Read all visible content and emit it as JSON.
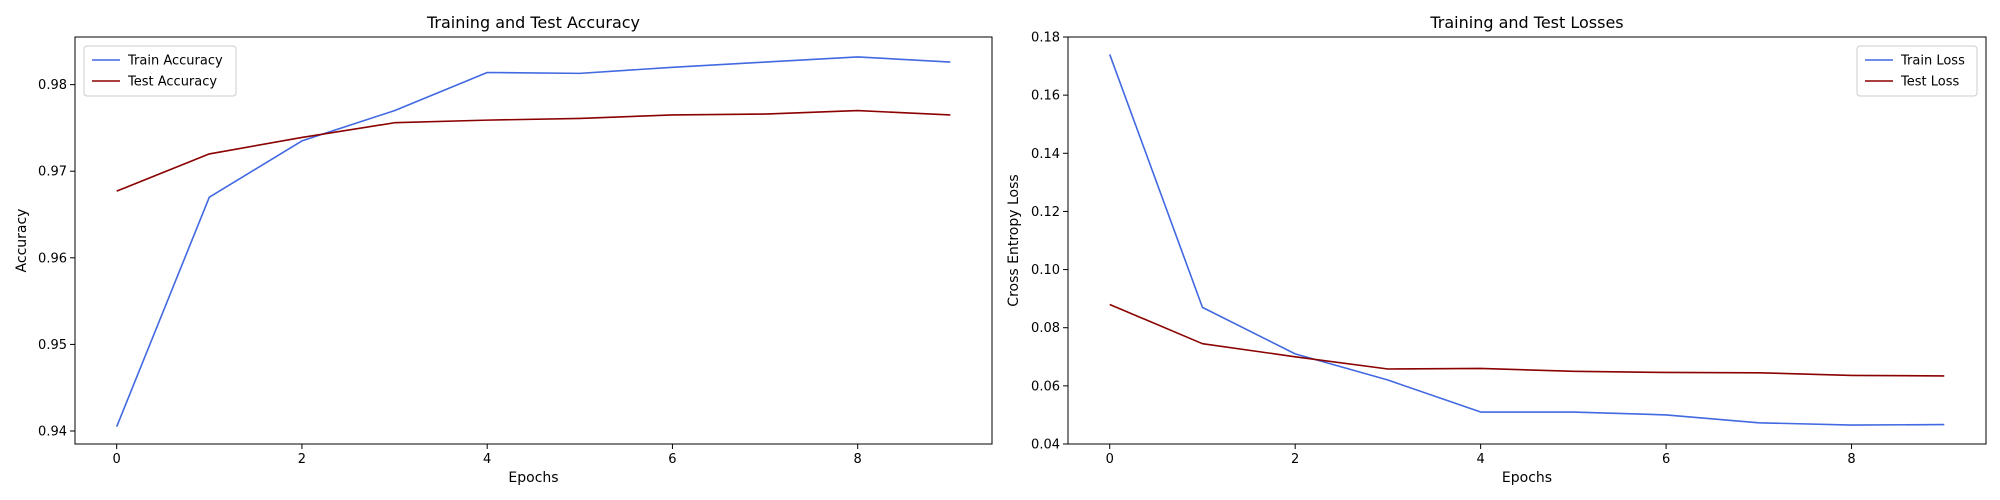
{
  "chart_data": [
    {
      "type": "line",
      "title": "Training and Test Accuracy",
      "xlabel": "Epochs",
      "ylabel": "Accuracy",
      "x": [
        0,
        1,
        2,
        3,
        4,
        5,
        6,
        7,
        8,
        9
      ],
      "xlim": [
        -0.45,
        9.45
      ],
      "ylim": [
        0.9385,
        0.9855
      ],
      "xticks": [
        0,
        2,
        4,
        6,
        8
      ],
      "yticks": [
        0.94,
        0.95,
        0.96,
        0.97,
        0.98
      ],
      "ytick_labels": [
        "0.94",
        "0.95",
        "0.96",
        "0.97",
        "0.98"
      ],
      "legend_position": "upper-left",
      "grid": false,
      "series": [
        {
          "name": "Train Accuracy",
          "color": "#4169e1",
          "values": [
            0.9405,
            0.967,
            0.9735,
            0.977,
            0.9814,
            0.9813,
            0.982,
            0.9826,
            0.9832,
            0.9826
          ]
        },
        {
          "name": "Test Accuracy",
          "color": "#8b0000",
          "values": [
            0.9677,
            0.972,
            0.9739,
            0.9756,
            0.9759,
            0.9761,
            0.9765,
            0.9766,
            0.977,
            0.9765
          ]
        }
      ]
    },
    {
      "type": "line",
      "title": "Training and Test Losses",
      "xlabel": "Epochs",
      "ylabel": "Cross Entropy Loss",
      "x": [
        0,
        1,
        2,
        3,
        4,
        5,
        6,
        7,
        8,
        9
      ],
      "xlim": [
        -0.45,
        9.45
      ],
      "ylim": [
        0.04,
        0.18
      ],
      "xticks": [
        0,
        2,
        4,
        6,
        8
      ],
      "yticks": [
        0.04,
        0.06,
        0.08,
        0.1,
        0.12,
        0.14,
        0.16,
        0.18
      ],
      "ytick_labels": [
        "0.04",
        "0.06",
        "0.08",
        "0.10",
        "0.12",
        "0.14",
        "0.16",
        "0.18"
      ],
      "legend_position": "upper-right",
      "grid": false,
      "series": [
        {
          "name": "Train Loss",
          "color": "#4169e1",
          "values": [
            0.174,
            0.087,
            0.071,
            0.062,
            0.051,
            0.051,
            0.05,
            0.0473,
            0.0465,
            0.0467
          ]
        },
        {
          "name": "Test Loss",
          "color": "#8b0000",
          "values": [
            0.088,
            0.0745,
            0.07,
            0.0658,
            0.066,
            0.065,
            0.0646,
            0.0645,
            0.0636,
            0.0634
          ]
        }
      ]
    }
  ]
}
